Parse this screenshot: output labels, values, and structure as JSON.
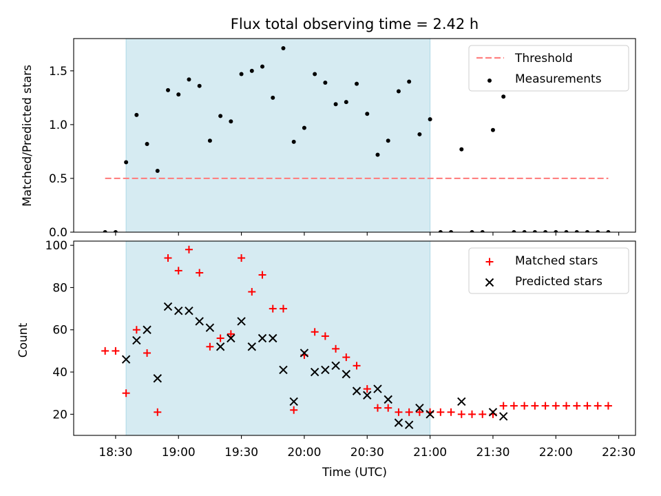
{
  "chart_data": [
    {
      "type": "scatter",
      "title": "Flux total observing time = 2.42 h",
      "xlabel": "",
      "ylabel": "Matched/Predicted stars",
      "ylim": [
        0,
        1.8
      ],
      "yticks": [
        "0.0",
        "0.5",
        "1.0",
        "1.5"
      ],
      "xlim_minutes": [
        1090,
        1358
      ],
      "shaded_interval": [
        "18:35",
        "21:00"
      ],
      "shade_color": "#add8e6",
      "legend_position": "upper right",
      "series": [
        {
          "name": "Threshold",
          "kind": "dashed-line",
          "color": "#ff8080",
          "x": [
            "18:25",
            "22:25"
          ],
          "y": [
            0.5,
            0.5
          ]
        },
        {
          "name": "Measurements",
          "kind": "dot",
          "color": "#000000",
          "x": [
            "18:25",
            "18:30",
            "18:35",
            "18:40",
            "18:45",
            "18:50",
            "18:55",
            "19:00",
            "19:05",
            "19:10",
            "19:15",
            "19:20",
            "19:25",
            "19:30",
            "19:35",
            "19:40",
            "19:45",
            "19:50",
            "19:55",
            "20:00",
            "20:05",
            "20:10",
            "20:15",
            "20:20",
            "20:25",
            "20:30",
            "20:35",
            "20:40",
            "20:45",
            "20:50",
            "20:55",
            "21:00",
            "21:05",
            "21:10",
            "21:15",
            "21:20",
            "21:25",
            "21:30",
            "21:35",
            "21:40",
            "21:45",
            "21:50",
            "21:55",
            "22:00",
            "22:05",
            "22:10",
            "22:15",
            "22:20",
            "22:25"
          ],
          "y": [
            0,
            0,
            0.65,
            1.09,
            0.82,
            0.57,
            1.32,
            1.28,
            1.42,
            1.36,
            0.85,
            1.08,
            1.03,
            1.47,
            1.5,
            1.54,
            1.25,
            1.71,
            0.84,
            0.97,
            1.47,
            1.39,
            1.19,
            1.21,
            1.38,
            1.1,
            0.72,
            0.85,
            1.31,
            1.4,
            0.91,
            1.05,
            0,
            0,
            0.77,
            0,
            0,
            0.95,
            1.26,
            0,
            0,
            0,
            0,
            0,
            0,
            0,
            0,
            0,
            0
          ]
        }
      ]
    },
    {
      "type": "scatter",
      "title": "",
      "xlabel": "Time (UTC)",
      "ylabel": "Count",
      "ylim": [
        10,
        102
      ],
      "yticks": [
        "20",
        "40",
        "60",
        "80",
        "100"
      ],
      "xticks": [
        "18:30",
        "19:00",
        "19:30",
        "20:00",
        "20:30",
        "21:00",
        "21:30",
        "22:00",
        "22:30"
      ],
      "xlim_minutes": [
        1090,
        1358
      ],
      "shaded_interval": [
        "18:35",
        "21:00"
      ],
      "shade_color": "#add8e6",
      "legend_position": "upper right",
      "series": [
        {
          "name": "Matched stars",
          "marker": "plus",
          "color": "#ff0000",
          "x": [
            "18:25",
            "18:30",
            "18:35",
            "18:40",
            "18:45",
            "18:50",
            "18:55",
            "19:00",
            "19:05",
            "19:10",
            "19:15",
            "19:20",
            "19:25",
            "19:30",
            "19:35",
            "19:40",
            "19:45",
            "19:50",
            "19:55",
            "20:00",
            "20:05",
            "20:10",
            "20:15",
            "20:20",
            "20:25",
            "20:30",
            "20:35",
            "20:40",
            "20:45",
            "20:50",
            "20:55",
            "21:00",
            "21:05",
            "21:10",
            "21:15",
            "21:20",
            "21:25",
            "21:30",
            "21:35",
            "21:40",
            "21:45",
            "21:50",
            "21:55",
            "22:00",
            "22:05",
            "22:10",
            "22:15",
            "22:20",
            "22:25"
          ],
          "y": [
            50,
            50,
            30,
            60,
            49,
            21,
            94,
            88,
            98,
            87,
            52,
            56,
            58,
            94,
            78,
            86,
            70,
            70,
            22,
            48,
            59,
            57,
            51,
            47,
            43,
            32,
            23,
            23,
            21,
            21,
            21,
            21,
            21,
            21,
            20,
            20,
            20,
            20,
            24,
            24,
            24,
            24,
            24,
            24,
            24,
            24,
            24,
            24,
            24
          ]
        },
        {
          "name": "Predicted stars",
          "marker": "x",
          "color": "#000000",
          "x": [
            "18:35",
            "18:40",
            "18:45",
            "18:50",
            "18:55",
            "19:00",
            "19:05",
            "19:10",
            "19:15",
            "19:20",
            "19:25",
            "19:30",
            "19:35",
            "19:40",
            "19:45",
            "19:50",
            "19:55",
            "20:00",
            "20:05",
            "20:10",
            "20:15",
            "20:20",
            "20:25",
            "20:30",
            "20:35",
            "20:40",
            "20:45",
            "20:50",
            "20:55",
            "21:00",
            "21:15",
            "21:30",
            "21:35"
          ],
          "y": [
            46,
            55,
            60,
            37,
            71,
            69,
            69,
            64,
            61,
            52,
            56,
            64,
            52,
            56,
            56,
            41,
            26,
            49,
            40,
            41,
            43,
            39,
            31,
            29,
            32,
            27,
            16,
            15,
            23,
            20,
            26,
            21,
            19
          ]
        }
      ]
    }
  ]
}
